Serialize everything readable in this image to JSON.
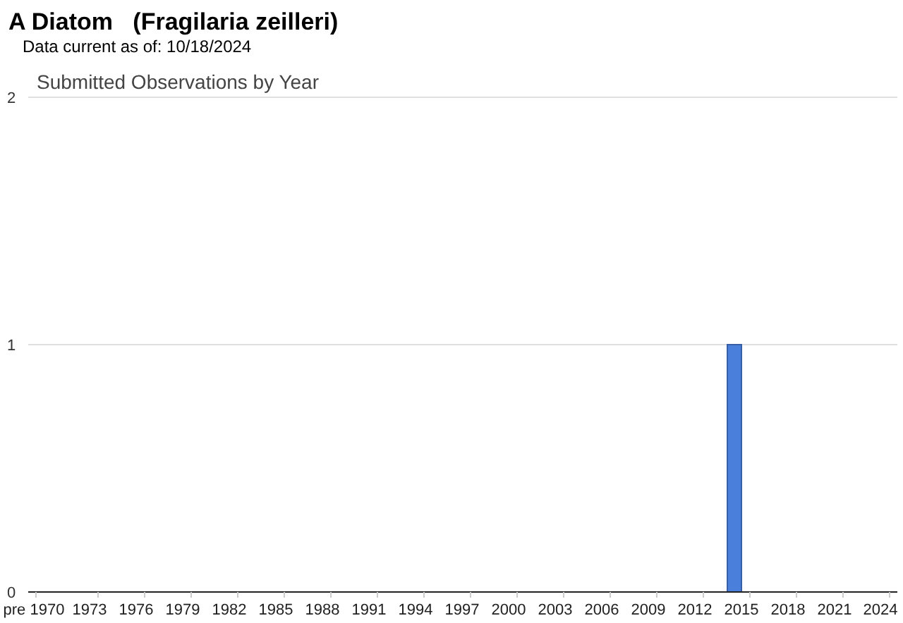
{
  "chart_data": {
    "type": "bar",
    "title": "A Diatom   (Fragilaria zeilleri)",
    "subtitle": "Data current as of: 10/18/2024",
    "annotations": [
      "Submitted Observations by Year"
    ],
    "categories": [
      "pre 1970",
      null,
      null,
      null,
      "1973",
      null,
      null,
      "1976",
      null,
      null,
      "1979",
      null,
      null,
      "1982",
      null,
      null,
      "1985",
      null,
      null,
      "1988",
      null,
      null,
      "1991",
      null,
      null,
      "1994",
      null,
      null,
      "1997",
      null,
      null,
      "2000",
      null,
      null,
      "2003",
      null,
      null,
      "2006",
      null,
      null,
      "2009",
      null,
      null,
      "2012",
      null,
      null,
      "2015",
      null,
      null,
      "2018",
      null,
      null,
      "2021",
      null,
      null,
      "2024"
    ],
    "values": [
      0,
      0,
      0,
      0,
      0,
      0,
      0,
      0,
      0,
      0,
      0,
      0,
      0,
      0,
      0,
      0,
      0,
      0,
      0,
      0,
      0,
      0,
      0,
      0,
      0,
      0,
      0,
      0,
      0,
      0,
      0,
      0,
      0,
      0,
      0,
      0,
      0,
      0,
      0,
      0,
      0,
      0,
      0,
      0,
      0,
      1,
      0,
      0,
      0,
      0,
      0,
      0,
      0,
      0,
      0,
      0
    ],
    "color": "#4a7fdc",
    "ylim": [
      0,
      2
    ],
    "yticks": [
      0,
      1,
      2
    ],
    "grid": "y"
  }
}
